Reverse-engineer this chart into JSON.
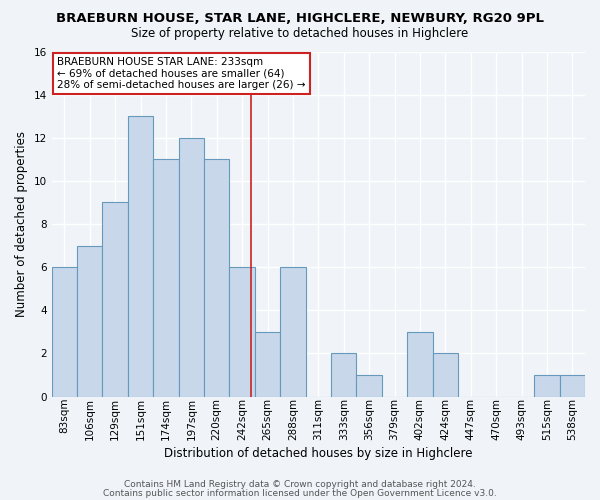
{
  "title": "BRAEBURN HOUSE, STAR LANE, HIGHCLERE, NEWBURY, RG20 9PL",
  "subtitle": "Size of property relative to detached houses in Highclere",
  "xlabel": "Distribution of detached houses by size in Highclere",
  "ylabel": "Number of detached properties",
  "bar_labels": [
    "83sqm",
    "106sqm",
    "129sqm",
    "151sqm",
    "174sqm",
    "197sqm",
    "220sqm",
    "242sqm",
    "265sqm",
    "288sqm",
    "311sqm",
    "333sqm",
    "356sqm",
    "379sqm",
    "402sqm",
    "424sqm",
    "447sqm",
    "470sqm",
    "493sqm",
    "515sqm",
    "538sqm"
  ],
  "bar_values": [
    6,
    7,
    9,
    13,
    11,
    12,
    11,
    6,
    3,
    6,
    0,
    2,
    1,
    0,
    3,
    2,
    0,
    0,
    0,
    1,
    1
  ],
  "bar_color": "#c8d8ea",
  "bar_edge_color": "#6699bb",
  "ylim": [
    0,
    16
  ],
  "yticks": [
    0,
    2,
    4,
    6,
    8,
    10,
    12,
    14,
    16
  ],
  "annotation_title": "BRAEBURN HOUSE STAR LANE: 233sqm",
  "annotation_line1": "← 69% of detached houses are smaller (64)",
  "annotation_line2": "28% of semi-detached houses are larger (26) →",
  "annotation_box_color": "#ffffff",
  "annotation_box_edge": "#cc2222",
  "vline_x": 7.35,
  "vline_color": "#cc2222",
  "footer_line1": "Contains HM Land Registry data © Crown copyright and database right 2024.",
  "footer_line2": "Contains public sector information licensed under the Open Government Licence v3.0.",
  "background_color": "#f0f4f8",
  "plot_background": "#f0f4f8",
  "title_fontsize": 9.5,
  "subtitle_fontsize": 8.5,
  "xlabel_fontsize": 8.5,
  "ylabel_fontsize": 8.5,
  "tick_fontsize": 7.5,
  "footer_fontsize": 6.5
}
